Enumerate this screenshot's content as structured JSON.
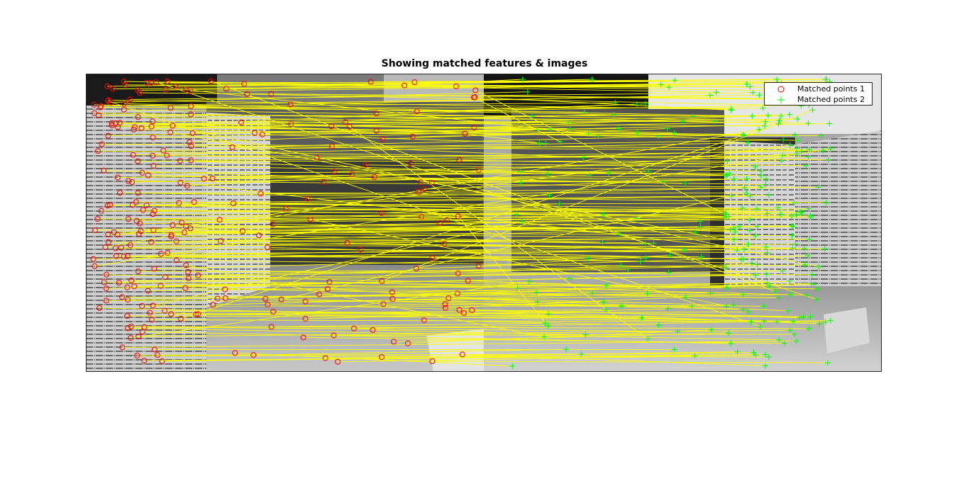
{
  "figure": {
    "title": "Showing matched features & images"
  },
  "legend": {
    "entries": [
      {
        "label": "Matched points 1",
        "marker": "circle",
        "color": "#ff0000"
      },
      {
        "label": "Matched points 2",
        "marker": "plus",
        "color": "#00ff00"
      }
    ]
  },
  "colors": {
    "match_line": "#ffff00",
    "points_1": "#ff0000",
    "points_2": "#00ff00",
    "axes_border": "#262626"
  },
  "image": {
    "description_kind": "stereo-pair-grayscale-side-by-side"
  }
}
